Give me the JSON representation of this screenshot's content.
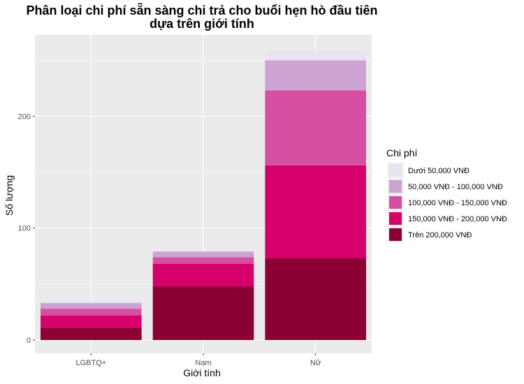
{
  "chart_data": {
    "type": "bar",
    "stacked": true,
    "title_lines": [
      "Phân loại chi phí sẵn sàng chi trả cho buổi hẹn hò đầu tiên",
      "dựa trên giới tính"
    ],
    "xlabel": "Giới tính",
    "ylabel": "Số lượng",
    "categories": [
      "LGBTQ+",
      "Nam",
      "Nữ"
    ],
    "ylim": [
      0,
      266
    ],
    "yticks": [
      0,
      100,
      200
    ],
    "grid": true,
    "legend_position": "right",
    "legend_title": "Chi phí",
    "series": [
      {
        "name": "Trên 200,000 VNĐ",
        "color": "#8B0035",
        "values": [
          11,
          48,
          73
        ]
      },
      {
        "name": "150,000 VNĐ - 200,000 VNĐ",
        "color": "#D5006A",
        "values": [
          11,
          20,
          83
        ]
      },
      {
        "name": "100,000 VNĐ - 150,000 VNĐ",
        "color": "#D74FA2",
        "values": [
          6,
          6,
          67
        ]
      },
      {
        "name": "50,000 VNĐ - 100,000 VNĐ",
        "color": "#CDA3D1",
        "values": [
          5,
          5,
          27
        ]
      },
      {
        "name": "Dưới 50,000 VNĐ",
        "color": "#E8E4F1",
        "values": [
          2,
          0,
          8
        ]
      }
    ]
  }
}
